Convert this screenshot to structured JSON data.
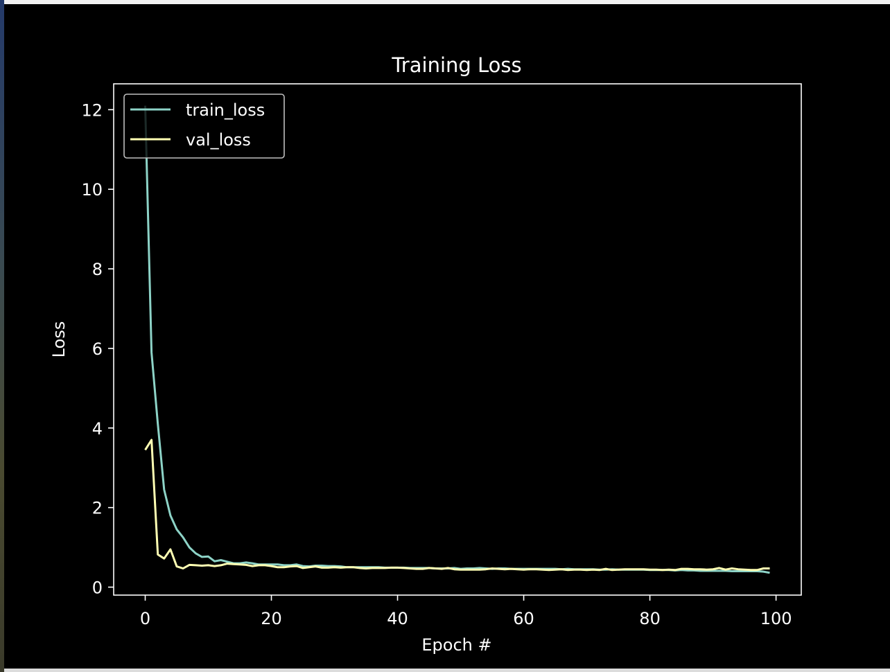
{
  "chart_data": {
    "type": "line",
    "title": "Training Loss",
    "xlabel": "Epoch #",
    "ylabel": "Loss",
    "xlim": [
      -5,
      104
    ],
    "ylim": [
      -0.2,
      12.65
    ],
    "xticks": [
      0,
      20,
      40,
      60,
      80,
      100
    ],
    "yticks": [
      0,
      2,
      4,
      6,
      8,
      10,
      12
    ],
    "grid": false,
    "legend_position": "upper-left",
    "background": "#000000",
    "series": [
      {
        "name": "train_loss",
        "color": "#8dd3c7",
        "x": [
          0,
          1,
          2,
          3,
          4,
          5,
          6,
          7,
          8,
          9,
          10,
          11,
          12,
          13,
          14,
          15,
          16,
          17,
          18,
          19,
          20,
          21,
          22,
          23,
          24,
          25,
          26,
          27,
          28,
          29,
          30,
          31,
          32,
          33,
          34,
          35,
          36,
          37,
          38,
          39,
          40,
          41,
          42,
          43,
          44,
          45,
          46,
          47,
          48,
          49,
          50,
          51,
          52,
          53,
          54,
          55,
          56,
          57,
          58,
          59,
          60,
          61,
          62,
          63,
          64,
          65,
          66,
          67,
          68,
          69,
          70,
          71,
          72,
          73,
          74,
          75,
          76,
          77,
          78,
          79,
          80,
          81,
          82,
          83,
          84,
          85,
          86,
          87,
          88,
          89,
          90,
          91,
          92,
          93,
          94,
          95,
          96,
          97,
          98,
          99
        ],
        "y": [
          12.1,
          5.9,
          4.1,
          2.45,
          1.8,
          1.45,
          1.25,
          1.0,
          0.85,
          0.76,
          0.77,
          0.65,
          0.68,
          0.64,
          0.6,
          0.6,
          0.62,
          0.6,
          0.57,
          0.57,
          0.57,
          0.57,
          0.55,
          0.55,
          0.57,
          0.53,
          0.52,
          0.54,
          0.54,
          0.53,
          0.53,
          0.52,
          0.5,
          0.5,
          0.5,
          0.5,
          0.5,
          0.5,
          0.49,
          0.49,
          0.49,
          0.49,
          0.48,
          0.48,
          0.48,
          0.48,
          0.47,
          0.47,
          0.47,
          0.48,
          0.46,
          0.47,
          0.47,
          0.48,
          0.47,
          0.46,
          0.47,
          0.47,
          0.46,
          0.46,
          0.46,
          0.46,
          0.46,
          0.46,
          0.46,
          0.46,
          0.45,
          0.46,
          0.45,
          0.45,
          0.45,
          0.45,
          0.44,
          0.44,
          0.45,
          0.44,
          0.44,
          0.44,
          0.44,
          0.44,
          0.43,
          0.43,
          0.43,
          0.43,
          0.42,
          0.43,
          0.42,
          0.42,
          0.41,
          0.41,
          0.41,
          0.41,
          0.41,
          0.4,
          0.4,
          0.4,
          0.4,
          0.4,
          0.39,
          0.36
        ]
      },
      {
        "name": "val_loss",
        "color": "#ffffb3",
        "x": [
          0,
          1,
          2,
          3,
          4,
          5,
          6,
          7,
          8,
          9,
          10,
          11,
          12,
          13,
          14,
          15,
          16,
          17,
          18,
          19,
          20,
          21,
          22,
          23,
          24,
          25,
          26,
          27,
          28,
          29,
          30,
          31,
          32,
          33,
          34,
          35,
          36,
          37,
          38,
          39,
          40,
          41,
          42,
          43,
          44,
          45,
          46,
          47,
          48,
          49,
          50,
          51,
          52,
          53,
          54,
          55,
          56,
          57,
          58,
          59,
          60,
          61,
          62,
          63,
          64,
          65,
          66,
          67,
          68,
          69,
          70,
          71,
          72,
          73,
          74,
          75,
          76,
          77,
          78,
          79,
          80,
          81,
          82,
          83,
          84,
          85,
          86,
          87,
          88,
          89,
          90,
          91,
          92,
          93,
          94,
          95,
          96,
          97,
          98,
          99
        ],
        "y": [
          3.45,
          3.7,
          0.82,
          0.72,
          0.95,
          0.52,
          0.47,
          0.56,
          0.55,
          0.54,
          0.55,
          0.53,
          0.55,
          0.59,
          0.58,
          0.57,
          0.56,
          0.53,
          0.55,
          0.55,
          0.53,
          0.5,
          0.5,
          0.52,
          0.53,
          0.48,
          0.5,
          0.52,
          0.49,
          0.49,
          0.5,
          0.49,
          0.5,
          0.5,
          0.48,
          0.47,
          0.48,
          0.48,
          0.48,
          0.49,
          0.49,
          0.48,
          0.47,
          0.46,
          0.46,
          0.48,
          0.47,
          0.46,
          0.48,
          0.45,
          0.44,
          0.44,
          0.44,
          0.44,
          0.45,
          0.47,
          0.46,
          0.45,
          0.46,
          0.45,
          0.44,
          0.45,
          0.45,
          0.44,
          0.43,
          0.44,
          0.45,
          0.43,
          0.44,
          0.44,
          0.43,
          0.44,
          0.43,
          0.46,
          0.43,
          0.44,
          0.45,
          0.45,
          0.45,
          0.45,
          0.44,
          0.44,
          0.43,
          0.44,
          0.43,
          0.46,
          0.46,
          0.45,
          0.45,
          0.44,
          0.45,
          0.48,
          0.44,
          0.47,
          0.45,
          0.44,
          0.43,
          0.43,
          0.47,
          0.47
        ]
      }
    ]
  }
}
